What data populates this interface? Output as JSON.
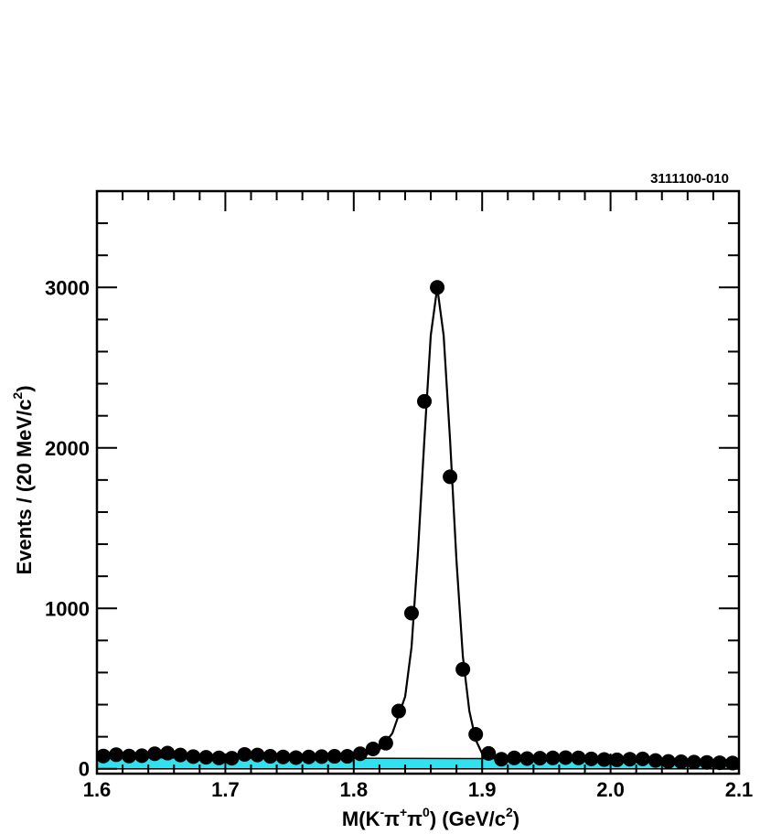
{
  "figure_code": "3111100-010",
  "colors": {
    "background_fill": "#33e1ee",
    "points": "#000000",
    "curve": "#000000",
    "frame": "#000000"
  },
  "chart_data": {
    "type": "scatter",
    "title": "",
    "xlabel": "M(K⁻π⁺π⁰) (GeV/c²)",
    "ylabel": "Events / (20 MeV/c²)",
    "xlabel_parts": {
      "base": "M(K",
      "sup1": "-",
      "mid1": "π",
      "sup2": "+",
      "mid2": "π",
      "sup3": "0",
      "mid3": ") (GeV/c",
      "sup4": "2",
      "end": ")"
    },
    "ylabel_parts": {
      "base": "Events / (20 MeV/c",
      "sup": "2",
      "end": ")"
    },
    "xlim": [
      1.6,
      2.1
    ],
    "ylim": [
      -30,
      3600
    ],
    "x_ticks": [
      1.6,
      1.7,
      1.8,
      1.9,
      2.0,
      2.1
    ],
    "x_tick_labels": [
      "1.6",
      "1.7",
      "1.8",
      "1.9",
      "2.0",
      "2.1"
    ],
    "y_ticks": [
      0,
      1000,
      2000,
      3000
    ],
    "y_tick_labels": [
      "0",
      "1000",
      "2000",
      "3000"
    ],
    "series": [
      {
        "type": "scatter",
        "x": [
          1.605,
          1.615,
          1.625,
          1.635,
          1.645,
          1.655,
          1.665,
          1.675,
          1.685,
          1.695,
          1.705,
          1.715,
          1.725,
          1.735,
          1.745,
          1.755,
          1.765,
          1.775,
          1.785,
          1.795,
          1.805,
          1.815,
          1.825,
          1.835,
          1.845,
          1.855,
          1.865,
          1.875,
          1.885,
          1.895,
          1.905,
          1.915,
          1.925,
          1.935,
          1.945,
          1.955,
          1.965,
          1.975,
          1.985,
          1.995,
          2.005,
          2.015,
          2.025,
          2.035,
          2.045,
          2.055,
          2.065,
          2.075,
          2.085,
          2.095
        ],
        "y": [
          80,
          88,
          80,
          82,
          94,
          98,
          86,
          76,
          72,
          68,
          66,
          90,
          86,
          78,
          74,
          70,
          74,
          76,
          78,
          78,
          94,
          124,
          160,
          360,
          970,
          2290,
          3000,
          1820,
          620,
          215,
          96,
          60,
          68,
          64,
          66,
          68,
          70,
          68,
          62,
          58,
          56,
          60,
          62,
          52,
          46,
          44,
          42,
          40,
          38,
          36
        ]
      },
      {
        "type": "line",
        "x": [
          1.6,
          1.7,
          1.8,
          1.81,
          1.82,
          1.83,
          1.84,
          1.845,
          1.85,
          1.855,
          1.86,
          1.865,
          1.87,
          1.875,
          1.88,
          1.885,
          1.89,
          1.895,
          1.9,
          1.91,
          1.92,
          2.0,
          2.1
        ],
        "y": [
          72,
          70,
          70,
          90,
          120,
          220,
          450,
          760,
          1350,
          2050,
          2700,
          3000,
          2700,
          2050,
          1300,
          700,
          360,
          180,
          95,
          70,
          62,
          56,
          50
        ]
      },
      {
        "type": "area",
        "x": [
          1.6,
          1.9,
          2.1
        ],
        "y": [
          70,
          64,
          56
        ]
      }
    ]
  }
}
